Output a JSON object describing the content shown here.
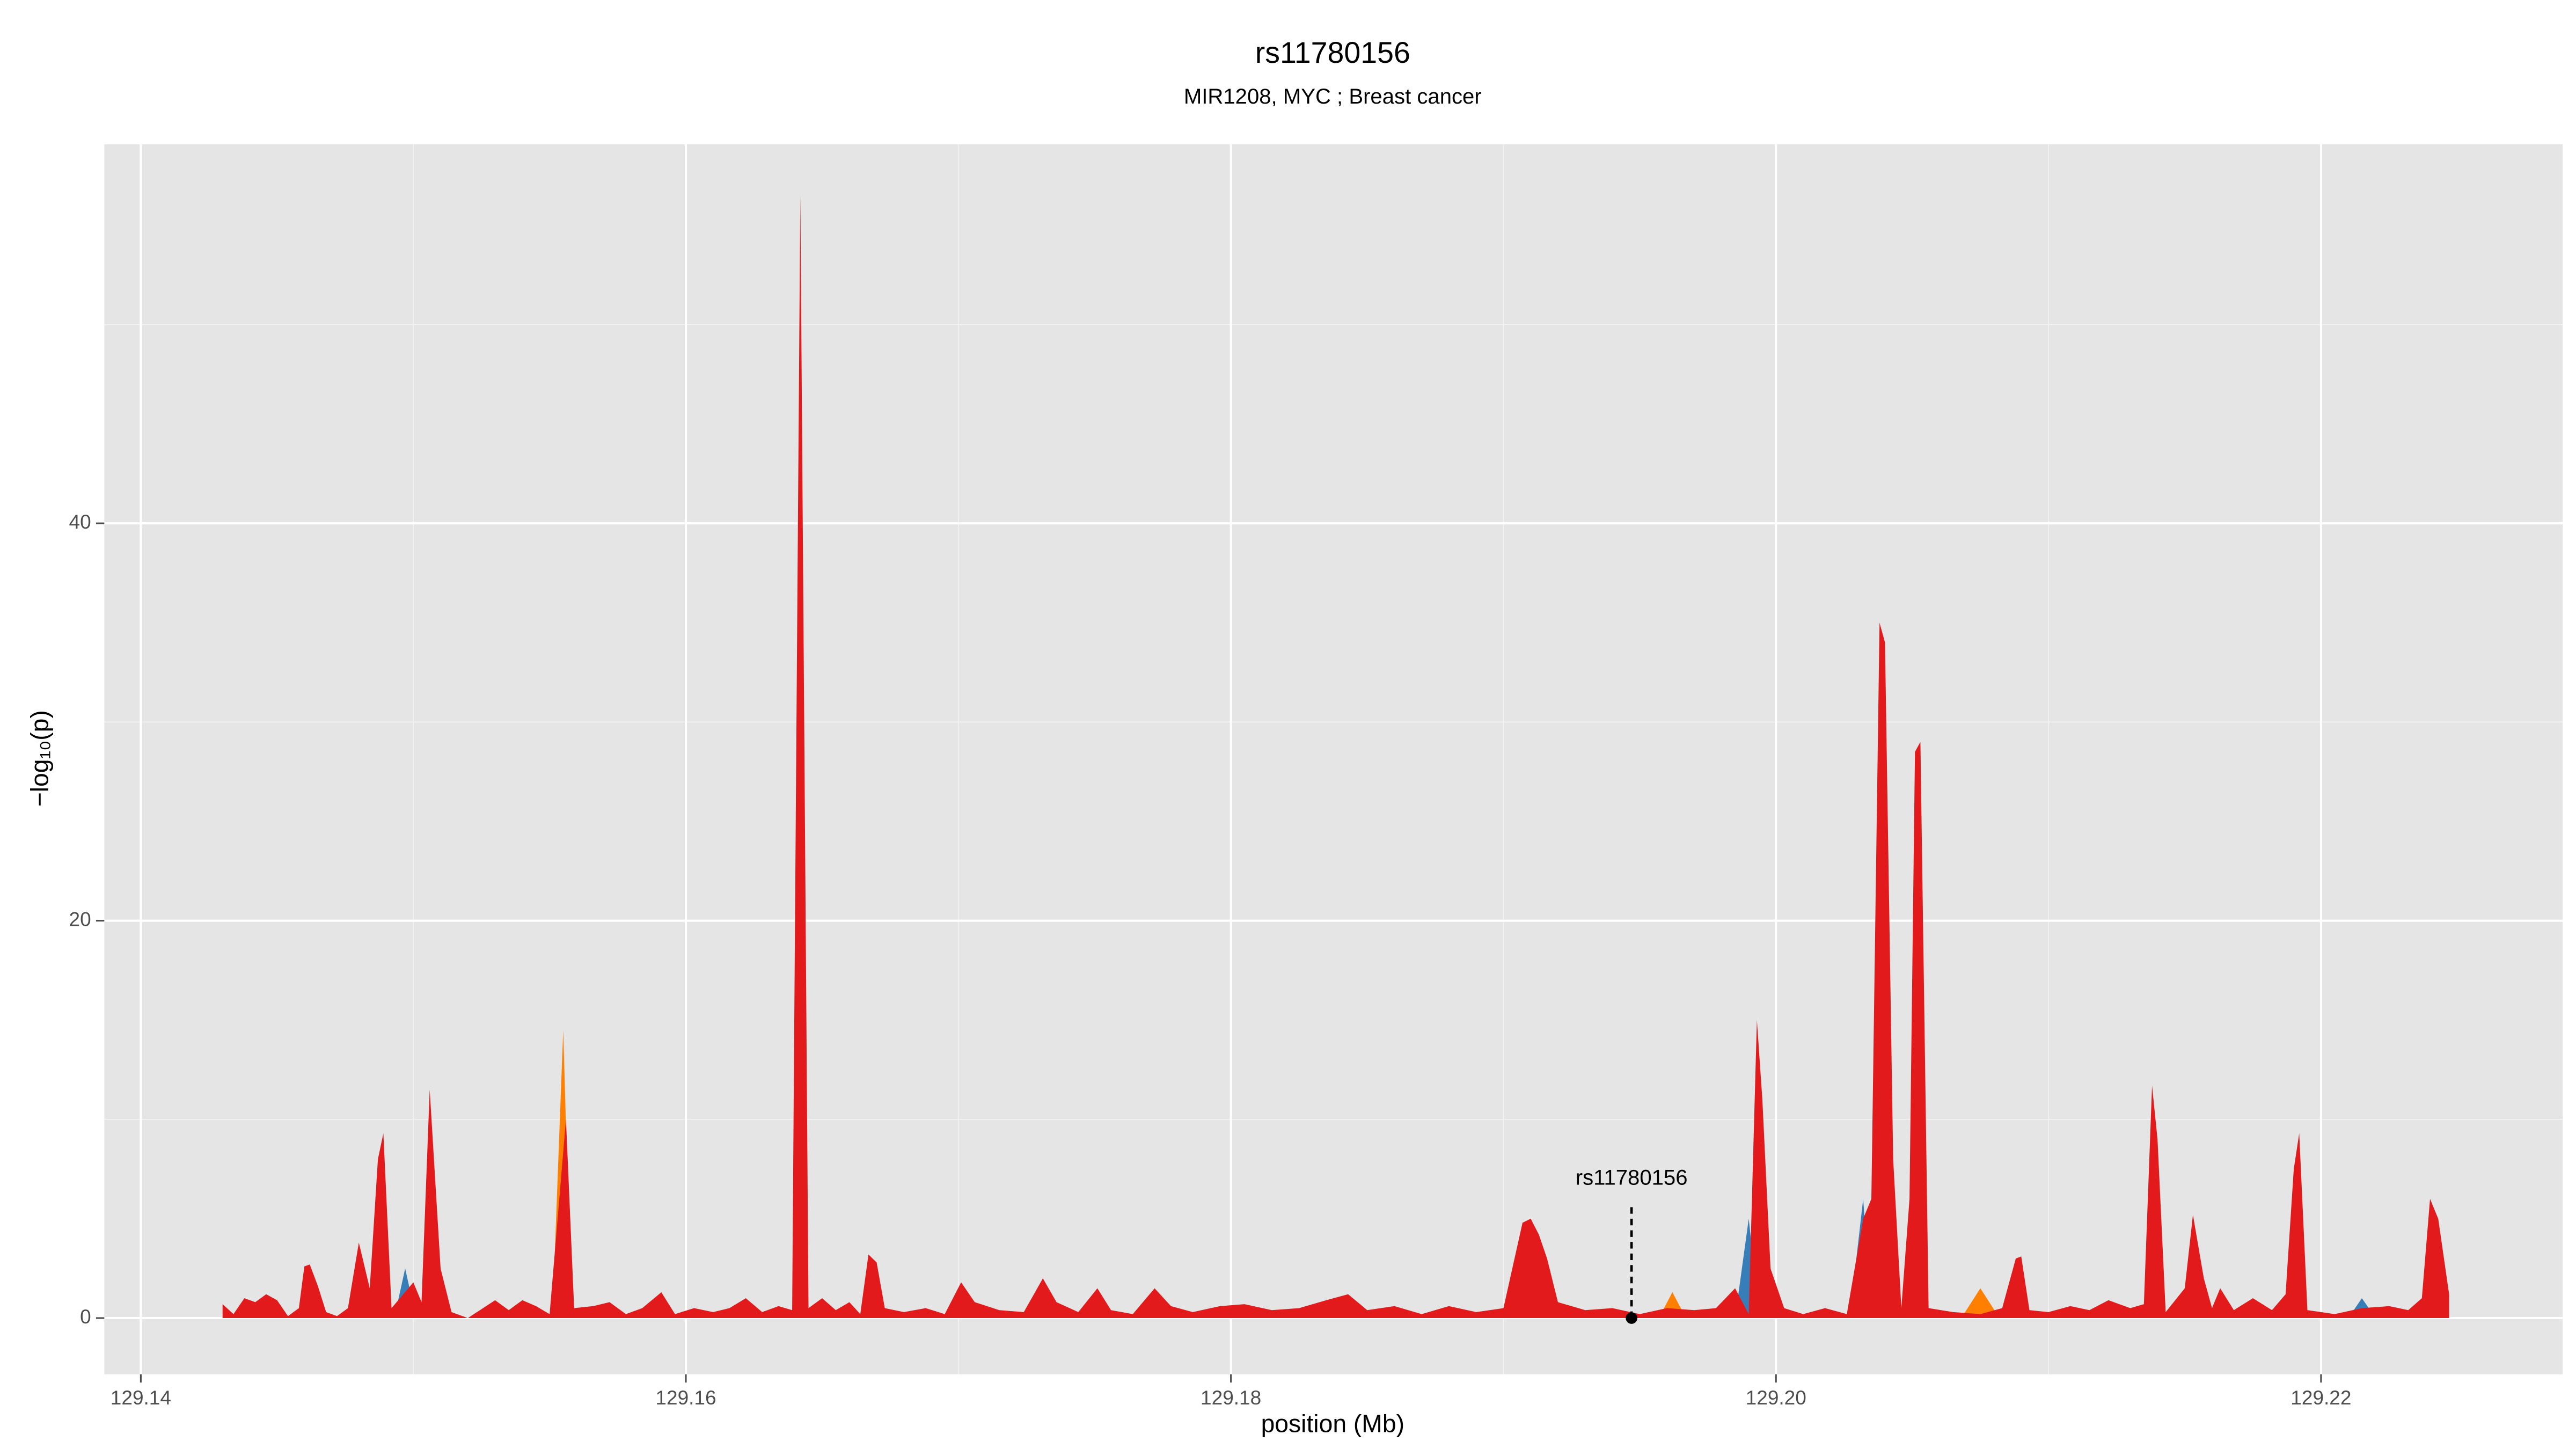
{
  "chart_data": {
    "type": "area",
    "title": "rs11780156",
    "subtitle": "MIR1208, MYC ; Breast cancer",
    "x_label": "position (Mb)",
    "y_label": "−log₁₀(p)",
    "xlim": [
      129.13866,
      129.22887
    ],
    "ylim": [
      -2.83,
      59.08
    ],
    "xticks": [
      129.14,
      129.16,
      129.18,
      {
        "value": 129.2,
        "label": "129.20"
      },
      129.22
    ],
    "yticks": [
      0,
      20,
      40
    ],
    "minor_xticks": [
      129.15,
      129.17,
      129.19,
      129.21
    ],
    "minor_yticks": [
      10,
      30,
      50
    ],
    "grid": true,
    "series": [
      {
        "color": "#e31a1c",
        "x": [
          129.143,
          129.1434,
          129.1438,
          129.1442,
          129.1446,
          129.145,
          129.1454,
          129.1458,
          129.146,
          129.1462,
          129.1465,
          129.1468,
          129.1472,
          129.1476,
          129.148,
          129.1484,
          129.1487,
          129.1489,
          129.1492,
          129.15,
          129.1503,
          129.1506,
          129.151,
          129.1514,
          129.152,
          129.153,
          129.1535,
          129.154,
          129.1545,
          129.155,
          129.1556,
          129.1559,
          129.1566,
          129.1572,
          129.1578,
          129.1584,
          129.1591,
          129.1596,
          129.1603,
          129.161,
          129.1616,
          129.1622,
          129.1628,
          129.1634,
          129.1639,
          129.1642,
          129.1645,
          129.165,
          129.1655,
          129.166,
          129.1664,
          129.1667,
          129.167,
          129.1673,
          129.168,
          129.1688,
          129.1695,
          129.1701,
          129.1706,
          129.1715,
          129.1724,
          129.1731,
          129.1736,
          129.1744,
          129.1751,
          129.1756,
          129.1764,
          129.1772,
          129.1778,
          129.1786,
          129.1796,
          129.1805,
          129.1815,
          129.1825,
          129.1835,
          129.1843,
          129.185,
          129.186,
          129.187,
          129.188,
          129.189,
          129.19,
          129.1907,
          129.191,
          129.1913,
          129.1916,
          129.192,
          129.193,
          129.194,
          129.195,
          129.196,
          129.197,
          129.1978,
          129.1985,
          129.199,
          129.1993,
          129.1995,
          129.1998,
          129.2003,
          129.201,
          129.2018,
          129.2026,
          129.2032,
          129.2035,
          129.2038,
          129.204,
          129.2043,
          129.2046,
          129.2049,
          129.2051,
          129.2053,
          129.2056,
          129.2065,
          129.2075,
          129.2083,
          129.2088,
          129.209,
          129.2093,
          129.21,
          129.2108,
          129.2115,
          129.2122,
          129.213,
          129.2135,
          129.2138,
          129.214,
          129.2143,
          129.215,
          129.2153,
          129.2157,
          129.216,
          129.2163,
          129.2168,
          129.2175,
          129.2182,
          129.2187,
          129.219,
          129.2192,
          129.2195,
          129.2205,
          129.2215,
          129.2225,
          129.2232,
          129.2237,
          129.224,
          129.2243,
          129.2247
        ],
        "values": [
          0.7,
          0.2,
          1.0,
          0.8,
          1.2,
          0.9,
          0.1,
          0.5,
          2.6,
          2.7,
          1.6,
          0.3,
          0.1,
          0.5,
          3.8,
          1.5,
          8.0,
          9.3,
          0.5,
          1.8,
          0.8,
          11.5,
          2.5,
          0.3,
          0,
          0.9,
          0.4,
          0.9,
          0.6,
          0.2,
          10,
          0.5,
          0.6,
          0.8,
          0.2,
          0.5,
          1.3,
          0.2,
          0.5,
          0.3,
          0.5,
          1.0,
          0.3,
          0.6,
          0.4,
          56.5,
          0.5,
          1.0,
          0.4,
          0.8,
          0.2,
          3.2,
          2.8,
          0.5,
          0.3,
          0.5,
          0.2,
          1.8,
          0.8,
          0.4,
          0.3,
          2.0,
          0.8,
          0.3,
          1.5,
          0.4,
          0.2,
          1.5,
          0.6,
          0.3,
          0.6,
          0.7,
          0.4,
          0.5,
          0.9,
          1.2,
          0.4,
          0.6,
          0.2,
          0.6,
          0.3,
          0.5,
          4.8,
          5.0,
          4.2,
          3.0,
          0.8,
          0.4,
          0.5,
          0.2,
          0.5,
          0.4,
          0.5,
          1.5,
          0.2,
          15,
          11,
          2.5,
          0.5,
          0.2,
          0.5,
          0.2,
          5.0,
          6.0,
          35,
          34,
          8,
          0.5,
          6,
          28.5,
          29,
          0.5,
          0.3,
          0.2,
          0.5,
          3.0,
          3.1,
          0.4,
          0.3,
          0.6,
          0.4,
          0.9,
          0.5,
          0.7,
          11.7,
          9.0,
          0.3,
          1.5,
          5.2,
          2.0,
          0.5,
          1.5,
          0.4,
          1.0,
          0.4,
          1.2,
          7.5,
          9.3,
          0.4,
          0.2,
          0.5,
          0.6,
          0.4,
          1.0,
          6.0,
          5.0,
          1.2
        ]
      },
      {
        "color": "#ff7f00",
        "x": [
          129.1551,
          129.1555,
          129.1558,
          129.156,
          129.1957,
          129.1962,
          129.1967,
          129.197,
          129.2068,
          129.2075,
          129.2082
        ],
        "values": [
          0,
          14.5,
          0,
          null,
          0,
          1.3,
          0,
          null,
          0,
          1.5,
          0
        ]
      },
      {
        "color": "#377eb8",
        "x": [
          129.1493,
          129.1497,
          129.1501,
          129.1503,
          129.1985,
          129.199,
          129.1994,
          129.1996,
          129.2027,
          129.2032,
          129.2035,
          129.2037,
          129.221,
          129.2215,
          129.222
        ],
        "values": [
          0,
          2.5,
          0,
          null,
          0,
          5,
          0,
          null,
          0,
          6,
          0,
          null,
          0,
          1,
          0
        ]
      }
    ],
    "annotation": {
      "text": "rs11780156",
      "x": 129.1947,
      "y": 0
    }
  }
}
